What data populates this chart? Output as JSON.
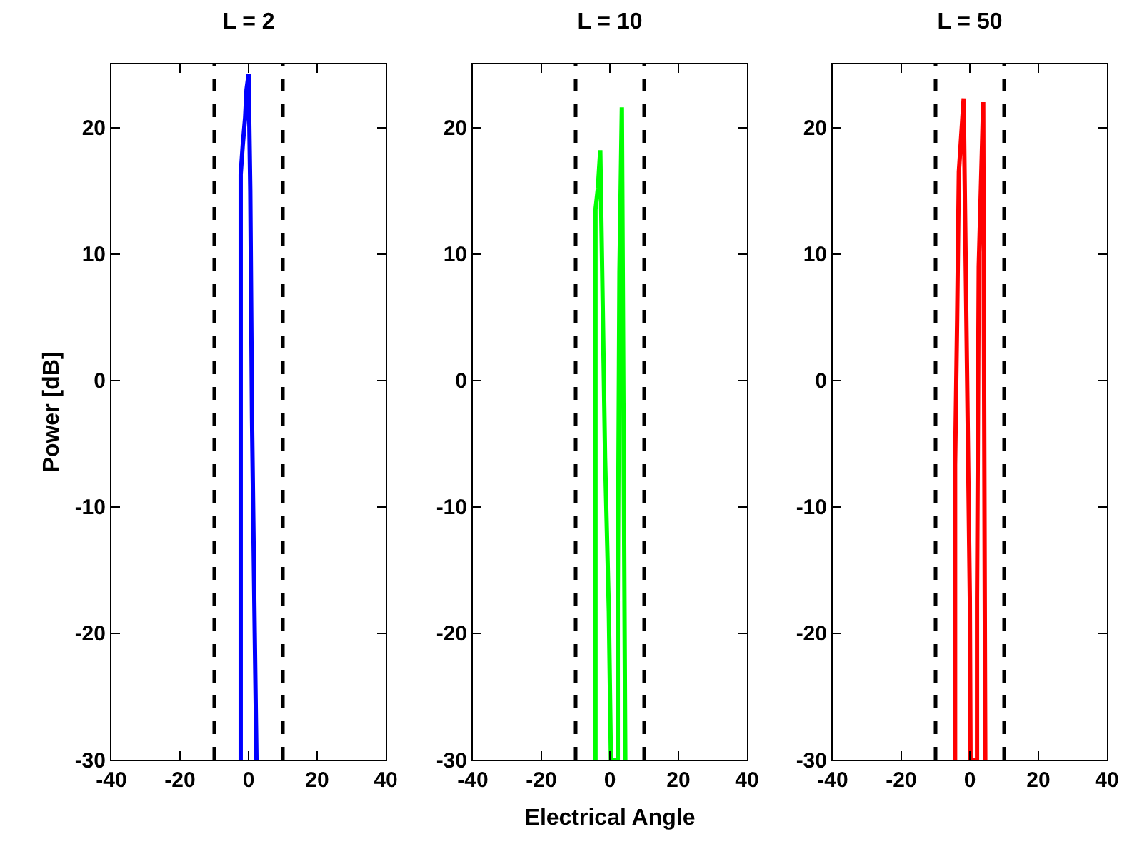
{
  "chart_data": [
    {
      "type": "line",
      "title": "L = 2",
      "ylabel": "Power [dB]",
      "xlim": [
        -40,
        40
      ],
      "xticks": [
        -40,
        -20,
        0,
        20,
        40
      ],
      "ylim": [
        -30,
        25
      ],
      "yticks": [
        -30,
        -20,
        -10,
        0,
        10,
        20
      ],
      "line_style": "solid",
      "series": [
        {
          "color": "#0000ff",
          "x": [
            -2.3,
            -2.3,
            -1.7,
            -1.0,
            -0.6,
            0,
            0.5,
            1.0,
            1.8,
            2.3
          ],
          "values": [
            -30,
            16.3,
            18.6,
            20.8,
            23,
            24.2,
            15,
            -3,
            -20,
            -30
          ]
        }
      ],
      "ref_lines": [
        {
          "axis": "x",
          "value": -10,
          "color": "#000000",
          "line_style": "dashed"
        },
        {
          "axis": "x",
          "value": 10,
          "color": "#000000",
          "line_style": "dashed"
        }
      ]
    },
    {
      "type": "line",
      "title": "L = 10",
      "xlabel": "Electrical Angle",
      "xlim": [
        -40,
        40
      ],
      "xticks": [
        -40,
        -20,
        0,
        20,
        40
      ],
      "ylim": [
        -30,
        25
      ],
      "yticks": [
        -30,
        -20,
        -10,
        0,
        10,
        20
      ],
      "line_style": "solid",
      "series": [
        {
          "color": "#00ff00",
          "x": [
            -4.2,
            -4.2,
            -3.5,
            -2.8,
            -2.1,
            -1.4,
            -0.3,
            0.3,
            2.3,
            2.3,
            2.8,
            3.5,
            4.5
          ],
          "values": [
            -30,
            13.5,
            15.2,
            18.2,
            6,
            -6.1,
            -18.3,
            -30,
            -30,
            -17.4,
            8.6,
            21.6,
            -30
          ]
        }
      ],
      "ref_lines": [
        {
          "axis": "x",
          "value": -10,
          "color": "#000000",
          "line_style": "dashed"
        },
        {
          "axis": "x",
          "value": 10,
          "color": "#000000",
          "line_style": "dashed"
        }
      ]
    },
    {
      "type": "line",
      "title": "L = 50",
      "xlim": [
        -40,
        40
      ],
      "xticks": [
        -40,
        -20,
        0,
        20,
        40
      ],
      "ylim": [
        -30,
        25
      ],
      "yticks": [
        -30,
        -20,
        -10,
        0,
        10,
        20
      ],
      "line_style": "solid",
      "series": [
        {
          "color": "#ff0000",
          "x": [
            -4.3,
            -4.3,
            -3.7,
            -3.2,
            -1.8,
            -1.2,
            -0.6,
            0,
            0.2,
            2.1,
            2.1,
            2.6,
            3.9,
            4.5
          ],
          "values": [
            -30,
            -6.7,
            4.9,
            16.5,
            22.3,
            9,
            -4,
            -17.2,
            -30,
            -30,
            -17.2,
            9,
            22,
            -30
          ]
        }
      ],
      "ref_lines": [
        {
          "axis": "x",
          "value": -10,
          "color": "#000000",
          "line_style": "dashed"
        },
        {
          "axis": "x",
          "value": 10,
          "color": "#000000",
          "line_style": "dashed"
        }
      ]
    }
  ]
}
